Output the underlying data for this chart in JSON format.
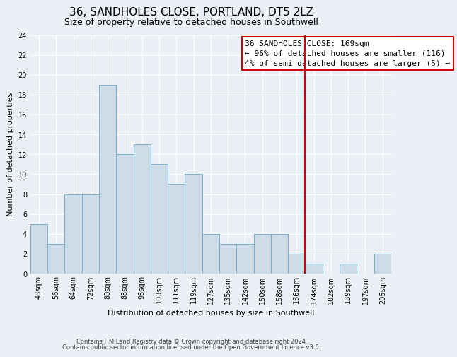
{
  "title": "36, SANDHOLES CLOSE, PORTLAND, DT5 2LZ",
  "subtitle": "Size of property relative to detached houses in Southwell",
  "xlabel": "Distribution of detached houses by size in Southwell",
  "ylabel": "Number of detached properties",
  "bins": [
    "48sqm",
    "56sqm",
    "64sqm",
    "72sqm",
    "80sqm",
    "88sqm",
    "95sqm",
    "103sqm",
    "111sqm",
    "119sqm",
    "127sqm",
    "135sqm",
    "142sqm",
    "150sqm",
    "158sqm",
    "166sqm",
    "174sqm",
    "182sqm",
    "189sqm",
    "197sqm",
    "205sqm"
  ],
  "bar_values": [
    5,
    3,
    8,
    8,
    19,
    12,
    13,
    11,
    9,
    10,
    4,
    3,
    3,
    4,
    4,
    2,
    1,
    0,
    1,
    0,
    2
  ],
  "bar_color": "#ccdce8",
  "bar_edge_color": "#7aafc8",
  "vline_color": "#cc0000",
  "vline_index": 15.5,
  "annotation_title": "36 SANDHOLES CLOSE: 169sqm",
  "annotation_line1": "← 96% of detached houses are smaller (116)",
  "annotation_line2": "4% of semi-detached houses are larger (5) →",
  "annotation_box_edgecolor": "#cc0000",
  "ylim": [
    0,
    24
  ],
  "yticks": [
    0,
    2,
    4,
    6,
    8,
    10,
    12,
    14,
    16,
    18,
    20,
    22,
    24
  ],
  "footnote1": "Contains HM Land Registry data © Crown copyright and database right 2024.",
  "footnote2": "Contains public sector information licensed under the Open Government Licence v3.0.",
  "bg_color": "#eaf0f6",
  "plot_bg_color": "#eaf0f6",
  "grid_color": "#ffffff",
  "title_fontsize": 11,
  "subtitle_fontsize": 9,
  "ylabel_fontsize": 8,
  "xlabel_fontsize": 8,
  "tick_fontsize": 7,
  "annotation_fontsize": 8,
  "footnote_fontsize": 6
}
